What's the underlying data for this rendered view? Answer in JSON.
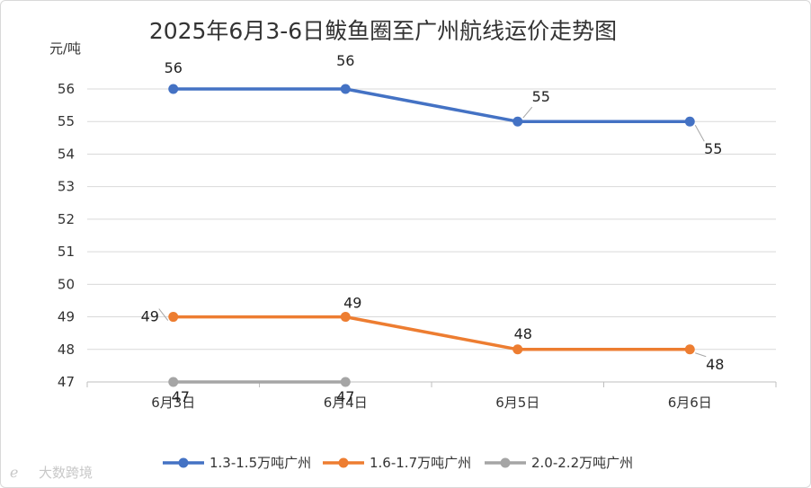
{
  "chart_data": {
    "type": "line",
    "title": "2025年6月3-6日鲅鱼圈至广州航线运价走势图",
    "ylabel": "元/吨",
    "xlabel": "",
    "categories": [
      "6月3日",
      "6月4日",
      "6月5日",
      "6月6日"
    ],
    "ylim": [
      47,
      56
    ],
    "yticks": [
      47,
      48,
      49,
      50,
      51,
      52,
      53,
      54,
      55,
      56
    ],
    "grid": true,
    "legend": "bottom",
    "series": [
      {
        "name": "1.3-1.5万吨广州",
        "values": [
          56,
          56,
          55,
          55
        ],
        "color": "#4472c4"
      },
      {
        "name": "1.6-1.7万吨广州",
        "values": [
          49,
          49,
          48,
          48
        ],
        "color": "#ed7d31"
      },
      {
        "name": "2.0-2.2万吨广州",
        "values": [
          47,
          47,
          null,
          null
        ],
        "color": "#a5a5a5"
      }
    ]
  },
  "watermark": "大数跨境"
}
